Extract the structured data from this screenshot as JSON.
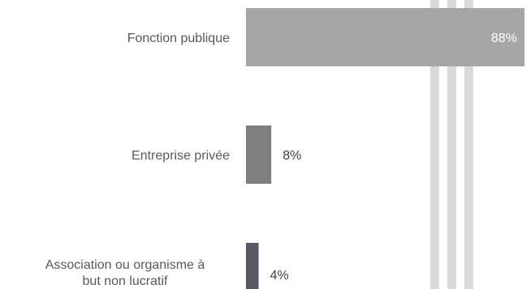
{
  "chart_data": {
    "type": "bar",
    "orientation": "horizontal",
    "categories": [
      "Fonction publique",
      "Entreprise privée",
      "Association ou organisme à but non lucratif"
    ],
    "category_lines": [
      [
        "Fonction publique"
      ],
      [
        "Entreprise privée"
      ],
      [
        "Association ou organisme à",
        "but non lucratif"
      ]
    ],
    "values": [
      88,
      8,
      4
    ],
    "value_labels": [
      "88%",
      "8%",
      "4%"
    ],
    "unit": "%",
    "bar_colors": [
      "#a6a6a6",
      "#7f7f7f",
      "#595964"
    ],
    "value_label_colors": [
      "#ffffff",
      "#404040",
      "#404040"
    ],
    "xlim": [
      0,
      100
    ],
    "grid": false,
    "legend": "none",
    "title": "",
    "xlabel": "",
    "ylabel": ""
  }
}
